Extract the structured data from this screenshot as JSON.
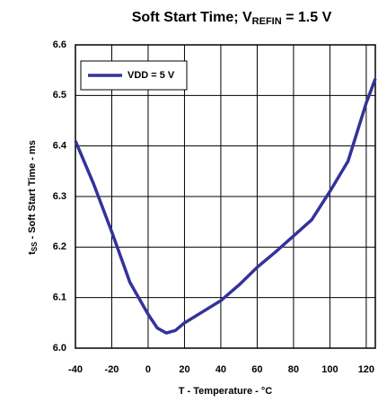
{
  "chart_data": {
    "type": "line",
    "title": {
      "main": "Soft Start Time; V",
      "sub": "REFIN",
      "rest": " = 1.5 V"
    },
    "x_label": "T - Temperature - °C",
    "y_label": {
      "main": "t",
      "sub": "SS",
      "rest": " - Soft Start Time - ms"
    },
    "x": [
      -40,
      -30,
      -20,
      -10,
      0,
      5,
      10,
      15,
      20,
      30,
      40,
      50,
      60,
      70,
      80,
      90,
      100,
      110,
      120,
      125
    ],
    "series": [
      {
        "name": "VDD = 5 V",
        "color": "#333399",
        "values": [
          6.41,
          6.325,
          6.23,
          6.13,
          6.067,
          6.04,
          6.03,
          6.035,
          6.05,
          6.072,
          6.094,
          6.125,
          6.16,
          6.19,
          6.222,
          6.254,
          6.31,
          6.37,
          6.485,
          6.533
        ]
      }
    ],
    "xlim": [
      -40,
      125
    ],
    "xticks": [
      -40,
      -20,
      0,
      20,
      40,
      60,
      80,
      100,
      120
    ],
    "ylim": [
      6.0,
      6.6
    ],
    "yticks": [
      {
        "value": 6.0,
        "label": "6.0"
      },
      6.1,
      6.2,
      6.3,
      6.4,
      6.5,
      6.6
    ],
    "grid": true,
    "legend": "upper left"
  }
}
